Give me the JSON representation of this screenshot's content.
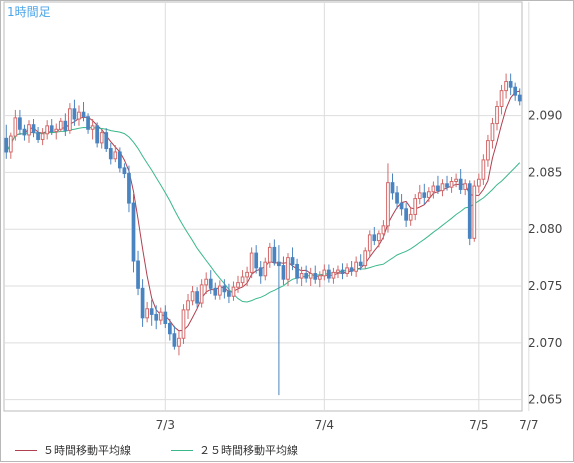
{
  "chart_data": {
    "type": "candlestick",
    "title": "1時間足",
    "ylim": [
      2.064,
      2.1
    ],
    "yticks": [
      "2.065",
      "2.070",
      "2.075",
      "2.080",
      "2.085",
      "2.090"
    ],
    "ytick_values": [
      2.065,
      2.07,
      2.075,
      2.08,
      2.085,
      2.09
    ],
    "xticks": [
      "7/3",
      "7/4",
      "7/5",
      "7/7"
    ],
    "xtick_positions": [
      35,
      70,
      104,
      115
    ],
    "legend": "bottom",
    "grid": true,
    "candles": [
      [
        2.088,
        2.0892,
        2.0862,
        2.0868
      ],
      [
        2.0868,
        2.0885,
        2.0862,
        2.0882
      ],
      [
        2.0882,
        2.0905,
        2.0878,
        2.0898
      ],
      [
        2.0898,
        2.0905,
        2.0883,
        2.0888
      ],
      [
        2.0888,
        2.0892,
        2.0878,
        2.0883
      ],
      [
        2.0883,
        2.0896,
        2.0876,
        2.0892
      ],
      [
        2.0892,
        2.0897,
        2.0881,
        2.0885
      ],
      [
        2.0885,
        2.089,
        2.0876,
        2.0879
      ],
      [
        2.0879,
        2.0889,
        2.0874,
        2.0884
      ],
      [
        2.0884,
        2.0896,
        2.0879,
        2.0891
      ],
      [
        2.0891,
        2.0897,
        2.0883,
        2.0886
      ],
      [
        2.0886,
        2.0893,
        2.0879,
        2.0888
      ],
      [
        2.0888,
        2.0898,
        2.0886,
        2.0895
      ],
      [
        2.0895,
        2.0902,
        2.0882,
        2.0887
      ],
      [
        2.0887,
        2.0911,
        2.0884,
        2.0906
      ],
      [
        2.0906,
        2.0914,
        2.0891,
        2.0897
      ],
      [
        2.0897,
        2.0909,
        2.0891,
        2.0903
      ],
      [
        2.0903,
        2.0912,
        2.0895,
        2.0899
      ],
      [
        2.0899,
        2.0902,
        2.0884,
        2.0888
      ],
      [
        2.0888,
        2.0897,
        2.0879,
        2.0891
      ],
      [
        2.0891,
        2.0894,
        2.0872,
        2.0876
      ],
      [
        2.0876,
        2.0888,
        2.0871,
        2.0885
      ],
      [
        2.0885,
        2.0889,
        2.0868,
        2.0871
      ],
      [
        2.0871,
        2.0876,
        2.0857,
        2.0862
      ],
      [
        2.0862,
        2.0874,
        2.0859,
        2.0868
      ],
      [
        2.0868,
        2.0872,
        2.085,
        2.0854
      ],
      [
        2.0854,
        2.0858,
        2.0845,
        2.0849
      ],
      [
        2.0849,
        2.0856,
        2.0815,
        2.0823
      ],
      [
        2.0823,
        2.0831,
        2.0762,
        2.0772
      ],
      [
        2.0772,
        2.0781,
        2.0742,
        2.0748
      ],
      [
        2.0748,
        2.0756,
        2.0714,
        2.0722
      ],
      [
        2.0722,
        2.0736,
        2.0718,
        2.073
      ],
      [
        2.073,
        2.0738,
        2.0715,
        2.0725
      ],
      [
        2.0725,
        2.0733,
        2.0712,
        2.072
      ],
      [
        2.072,
        2.0731,
        2.0716,
        2.0727
      ],
      [
        2.0727,
        2.0733,
        2.0713,
        2.0717
      ],
      [
        2.0717,
        2.0721,
        2.0702,
        2.0708
      ],
      [
        2.0708,
        2.0715,
        2.0694,
        2.0697
      ],
      [
        2.0697,
        2.071,
        2.0689,
        2.0704
      ],
      [
        2.0704,
        2.0734,
        2.0699,
        2.0729
      ],
      [
        2.0729,
        2.0743,
        2.0721,
        2.0737
      ],
      [
        2.0737,
        2.075,
        2.0733,
        2.0745
      ],
      [
        2.0745,
        2.0749,
        2.0731,
        2.0735
      ],
      [
        2.0735,
        2.0756,
        2.0731,
        2.0751
      ],
      [
        2.0751,
        2.0762,
        2.0743,
        2.0756
      ],
      [
        2.0756,
        2.0764,
        2.0743,
        2.0748
      ],
      [
        2.0748,
        2.0753,
        2.0738,
        2.0742
      ],
      [
        2.0742,
        2.0755,
        2.0738,
        2.075
      ],
      [
        2.075,
        2.0756,
        2.0739,
        2.0745
      ],
      [
        2.0745,
        2.0752,
        2.0735,
        2.0741
      ],
      [
        2.0741,
        2.0754,
        2.0737,
        2.0749
      ],
      [
        2.0749,
        2.0759,
        2.0744,
        2.0753
      ],
      [
        2.0753,
        2.0764,
        2.0749,
        2.0758
      ],
      [
        2.0758,
        2.0767,
        2.075,
        2.0762
      ],
      [
        2.0762,
        2.0784,
        2.0757,
        2.0779
      ],
      [
        2.0779,
        2.0786,
        2.0761,
        2.0766
      ],
      [
        2.0766,
        2.0772,
        2.0752,
        2.0759
      ],
      [
        2.0759,
        2.0775,
        2.0755,
        2.0771
      ],
      [
        2.0771,
        2.0788,
        2.0766,
        2.0784
      ],
      [
        2.0784,
        2.0791,
        2.0768,
        2.0771
      ],
      [
        2.0771,
        2.0786,
        2.0654,
        2.0768
      ],
      [
        2.0768,
        2.0776,
        2.0751,
        2.0756
      ],
      [
        2.0756,
        2.0779,
        2.075,
        2.0775
      ],
      [
        2.0775,
        2.0784,
        2.0764,
        2.0769
      ],
      [
        2.0769,
        2.0774,
        2.0752,
        2.0757
      ],
      [
        2.0757,
        2.0767,
        2.075,
        2.0761
      ],
      [
        2.0761,
        2.0768,
        2.0753,
        2.0757
      ],
      [
        2.0757,
        2.0766,
        2.075,
        2.0761
      ],
      [
        2.0761,
        2.0768,
        2.0752,
        2.0756
      ],
      [
        2.0756,
        2.0763,
        2.0749,
        2.0759
      ],
      [
        2.0759,
        2.0769,
        2.0755,
        2.0764
      ],
      [
        2.0764,
        2.0769,
        2.0753,
        2.0757
      ],
      [
        2.0757,
        2.0766,
        2.0752,
        2.0762
      ],
      [
        2.0762,
        2.0768,
        2.0757,
        2.0764
      ],
      [
        2.0764,
        2.077,
        2.0756,
        2.0761
      ],
      [
        2.0761,
        2.077,
        2.0758,
        2.0766
      ],
      [
        2.0766,
        2.0772,
        2.0759,
        2.0763
      ],
      [
        2.0763,
        2.0776,
        2.0758,
        2.0771
      ],
      [
        2.0771,
        2.0778,
        2.0764,
        2.0768
      ],
      [
        2.0768,
        2.0784,
        2.0765,
        2.0781
      ],
      [
        2.0781,
        2.0799,
        2.0776,
        2.0795
      ],
      [
        2.0795,
        2.0802,
        2.0786,
        2.079
      ],
      [
        2.079,
        2.0799,
        2.0784,
        2.0796
      ],
      [
        2.0796,
        2.0808,
        2.0791,
        2.0803
      ],
      [
        2.0803,
        2.0858,
        2.0797,
        2.0841
      ],
      [
        2.0841,
        2.0849,
        2.0826,
        2.0832
      ],
      [
        2.0832,
        2.0838,
        2.0818,
        2.0823
      ],
      [
        2.0823,
        2.0831,
        2.0812,
        2.0818
      ],
      [
        2.0818,
        2.0823,
        2.0802,
        2.0808
      ],
      [
        2.0808,
        2.0819,
        2.0803,
        2.0813
      ],
      [
        2.0813,
        2.0831,
        2.0808,
        2.0827
      ],
      [
        2.0827,
        2.0839,
        2.0822,
        2.0832
      ],
      [
        2.0832,
        2.084,
        2.0822,
        2.0828
      ],
      [
        2.0828,
        2.0837,
        2.0824,
        2.0833
      ],
      [
        2.0833,
        2.0842,
        2.0827,
        2.0838
      ],
      [
        2.0838,
        2.0847,
        2.0831,
        2.0834
      ],
      [
        2.0834,
        2.0844,
        2.0829,
        2.084
      ],
      [
        2.084,
        2.0847,
        2.0834,
        2.0837
      ],
      [
        2.0837,
        2.0846,
        2.0832,
        2.0842
      ],
      [
        2.0842,
        2.0849,
        2.0837,
        2.0844
      ],
      [
        2.0844,
        2.0853,
        2.0831,
        2.0835
      ],
      [
        2.0835,
        2.0844,
        2.083,
        2.084
      ],
      [
        2.084,
        2.0843,
        2.0786,
        2.0792
      ],
      [
        2.0792,
        2.0843,
        2.0789,
        2.0838
      ],
      [
        2.0838,
        2.0849,
        2.0832,
        2.0844
      ],
      [
        2.0844,
        2.0866,
        2.0839,
        2.0861
      ],
      [
        2.0861,
        2.0883,
        2.0855,
        2.0878
      ],
      [
        2.0878,
        2.0898,
        2.0871,
        2.0893
      ],
      [
        2.0893,
        2.0913,
        2.0887,
        2.0908
      ],
      [
        2.0908,
        2.0927,
        2.0901,
        2.0922
      ],
      [
        2.0922,
        2.0937,
        2.0915,
        2.093
      ],
      [
        2.093,
        2.0937,
        2.0918,
        2.0925
      ],
      [
        2.0925,
        2.0929,
        2.0913,
        2.0918
      ],
      [
        2.0918,
        2.0924,
        2.0909,
        2.0913
      ]
    ],
    "series": [
      {
        "name": "５時間移動平均線",
        "color": "#b04050",
        "period": 5
      },
      {
        "name": "２５時間移動平均線",
        "color": "#3ab88a",
        "period": 25
      }
    ]
  },
  "colors": {
    "up": "#d36a6a",
    "down": "#4a84c0",
    "grid": "#dddddd",
    "axis_text": "#444444",
    "title": "#4da6e8"
  }
}
